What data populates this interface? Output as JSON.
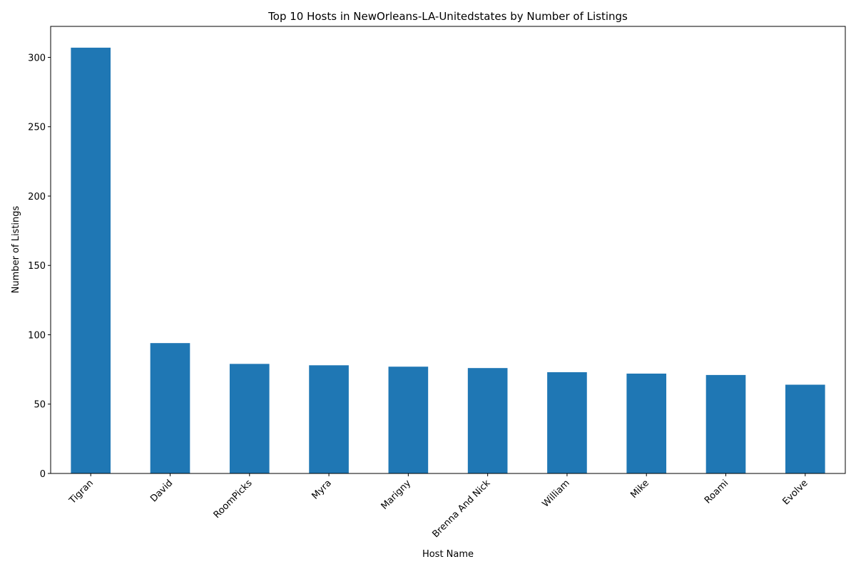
{
  "chart_data": {
    "type": "bar",
    "title": "Top 10 Hosts in NewOrleans-LA-Unitedstates by Number of Listings",
    "xlabel": "Host Name",
    "ylabel": "Number of Listings",
    "categories": [
      "Tigran",
      "David",
      "RoomPicks",
      "Myra",
      "Marigny",
      "Brenna And Nick",
      "William",
      "Mike",
      "Roami",
      "Evolve"
    ],
    "values": [
      307,
      94,
      79,
      78,
      77,
      76,
      73,
      72,
      71,
      64
    ],
    "ylim": [
      0,
      322.35
    ],
    "yticks": [
      0,
      50,
      100,
      150,
      200,
      250,
      300
    ],
    "grid": false,
    "legend": "none",
    "bar_color": "#1f77b4"
  }
}
